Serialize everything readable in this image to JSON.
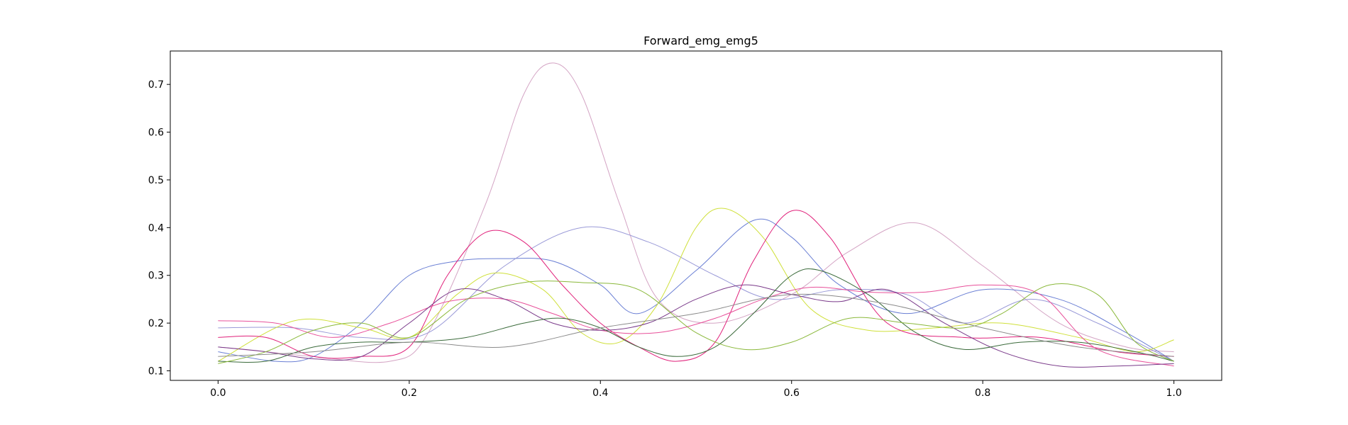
{
  "chart_data": {
    "type": "line",
    "title": "Forward_emg_emg5",
    "xlabel": "",
    "ylabel": "",
    "xlim": [
      -0.05,
      1.05
    ],
    "ylim": [
      0.08,
      0.77
    ],
    "grid": false,
    "legend": "none",
    "x_ticks": [
      0.0,
      0.2,
      0.4,
      0.6,
      0.8,
      1.0
    ],
    "x_tick_labels": [
      "0.0",
      "0.2",
      "0.4",
      "0.6",
      "0.8",
      "1.0"
    ],
    "y_ticks": [
      0.1,
      0.2,
      0.3,
      0.4,
      0.5,
      0.6,
      0.7
    ],
    "y_tick_labels": [
      "0.1",
      "0.2",
      "0.3",
      "0.4",
      "0.5",
      "0.6",
      "0.7"
    ],
    "series": [
      {
        "color": "#d4a4c4",
        "x": [
          0.0,
          0.05,
          0.1,
          0.18,
          0.22,
          0.28,
          0.32,
          0.35,
          0.38,
          0.42,
          0.46,
          0.52,
          0.6,
          0.66,
          0.73,
          0.8,
          0.88,
          0.95,
          1.0
        ],
        "y": [
          0.15,
          0.14,
          0.13,
          0.12,
          0.18,
          0.45,
          0.68,
          0.745,
          0.68,
          0.45,
          0.25,
          0.2,
          0.26,
          0.35,
          0.41,
          0.32,
          0.2,
          0.15,
          0.14
        ]
      },
      {
        "color": "#6a7fd4",
        "x": [
          0.0,
          0.06,
          0.1,
          0.15,
          0.2,
          0.25,
          0.3,
          0.35,
          0.4,
          0.44,
          0.5,
          0.56,
          0.6,
          0.65,
          0.72,
          0.8,
          0.88,
          0.95,
          1.0
        ],
        "y": [
          0.14,
          0.12,
          0.13,
          0.2,
          0.3,
          0.33,
          0.335,
          0.33,
          0.28,
          0.22,
          0.31,
          0.415,
          0.38,
          0.28,
          0.22,
          0.27,
          0.25,
          0.18,
          0.12
        ]
      },
      {
        "color": "#9a9ad8",
        "x": [
          0.0,
          0.08,
          0.15,
          0.22,
          0.3,
          0.38,
          0.45,
          0.52,
          0.58,
          0.65,
          0.72,
          0.78,
          0.85,
          0.92,
          1.0
        ],
        "y": [
          0.19,
          0.19,
          0.17,
          0.18,
          0.32,
          0.4,
          0.37,
          0.3,
          0.25,
          0.27,
          0.26,
          0.2,
          0.25,
          0.2,
          0.12
        ]
      },
      {
        "color": "#cfe03a",
        "x": [
          0.0,
          0.08,
          0.15,
          0.2,
          0.25,
          0.29,
          0.34,
          0.38,
          0.42,
          0.46,
          0.5,
          0.53,
          0.57,
          0.62,
          0.68,
          0.75,
          0.82,
          0.9,
          0.96,
          1.0
        ],
        "y": [
          0.12,
          0.205,
          0.19,
          0.17,
          0.26,
          0.305,
          0.27,
          0.18,
          0.16,
          0.24,
          0.4,
          0.44,
          0.38,
          0.23,
          0.185,
          0.19,
          0.2,
          0.17,
          0.14,
          0.165
        ]
      },
      {
        "color": "#e0207a",
        "x": [
          0.0,
          0.05,
          0.1,
          0.15,
          0.2,
          0.24,
          0.28,
          0.32,
          0.36,
          0.4,
          0.44,
          0.48,
          0.52,
          0.56,
          0.6,
          0.64,
          0.7,
          0.78,
          0.86,
          0.94,
          1.0
        ],
        "y": [
          0.17,
          0.17,
          0.13,
          0.13,
          0.15,
          0.3,
          0.39,
          0.37,
          0.28,
          0.2,
          0.15,
          0.12,
          0.16,
          0.33,
          0.435,
          0.38,
          0.2,
          0.17,
          0.17,
          0.14,
          0.13
        ]
      },
      {
        "color": "#e8509a",
        "x": [
          0.0,
          0.06,
          0.12,
          0.18,
          0.24,
          0.3,
          0.35,
          0.4,
          0.46,
          0.52,
          0.57,
          0.62,
          0.68,
          0.74,
          0.8,
          0.86,
          0.92,
          1.0
        ],
        "y": [
          0.205,
          0.2,
          0.17,
          0.2,
          0.245,
          0.25,
          0.22,
          0.185,
          0.18,
          0.21,
          0.25,
          0.275,
          0.265,
          0.265,
          0.28,
          0.26,
          0.145,
          0.11
        ]
      },
      {
        "color": "#7a3a8a",
        "x": [
          0.0,
          0.05,
          0.1,
          0.15,
          0.2,
          0.25,
          0.3,
          0.35,
          0.4,
          0.45,
          0.5,
          0.55,
          0.6,
          0.65,
          0.7,
          0.76,
          0.82,
          0.88,
          0.94,
          1.0
        ],
        "y": [
          0.15,
          0.14,
          0.125,
          0.13,
          0.2,
          0.27,
          0.25,
          0.2,
          0.185,
          0.2,
          0.25,
          0.28,
          0.26,
          0.245,
          0.27,
          0.2,
          0.14,
          0.11,
          0.11,
          0.115
        ]
      },
      {
        "color": "#3a6a3a",
        "x": [
          0.0,
          0.05,
          0.1,
          0.15,
          0.2,
          0.26,
          0.32,
          0.36,
          0.4,
          0.44,
          0.48,
          0.52,
          0.56,
          0.6,
          0.63,
          0.68,
          0.73,
          0.78,
          0.84,
          0.9,
          0.96,
          1.0
        ],
        "y": [
          0.12,
          0.12,
          0.15,
          0.16,
          0.16,
          0.17,
          0.2,
          0.21,
          0.19,
          0.15,
          0.13,
          0.15,
          0.22,
          0.3,
          0.31,
          0.26,
          0.18,
          0.145,
          0.16,
          0.16,
          0.14,
          0.12
        ]
      },
      {
        "color": "#8ab83a",
        "x": [
          0.0,
          0.05,
          0.1,
          0.15,
          0.2,
          0.26,
          0.32,
          0.38,
          0.44,
          0.5,
          0.55,
          0.6,
          0.66,
          0.72,
          0.78,
          0.82,
          0.87,
          0.92,
          0.96,
          1.0
        ],
        "y": [
          0.115,
          0.14,
          0.185,
          0.2,
          0.17,
          0.25,
          0.285,
          0.285,
          0.27,
          0.18,
          0.145,
          0.16,
          0.21,
          0.2,
          0.19,
          0.22,
          0.28,
          0.26,
          0.16,
          0.12
        ]
      },
      {
        "color": "#8a8a8a",
        "x": [
          0.0,
          0.1,
          0.2,
          0.3,
          0.4,
          0.5,
          0.6,
          0.7,
          0.8,
          0.9,
          1.0
        ],
        "y": [
          0.13,
          0.14,
          0.16,
          0.15,
          0.19,
          0.22,
          0.26,
          0.24,
          0.19,
          0.15,
          0.13
        ]
      }
    ]
  }
}
